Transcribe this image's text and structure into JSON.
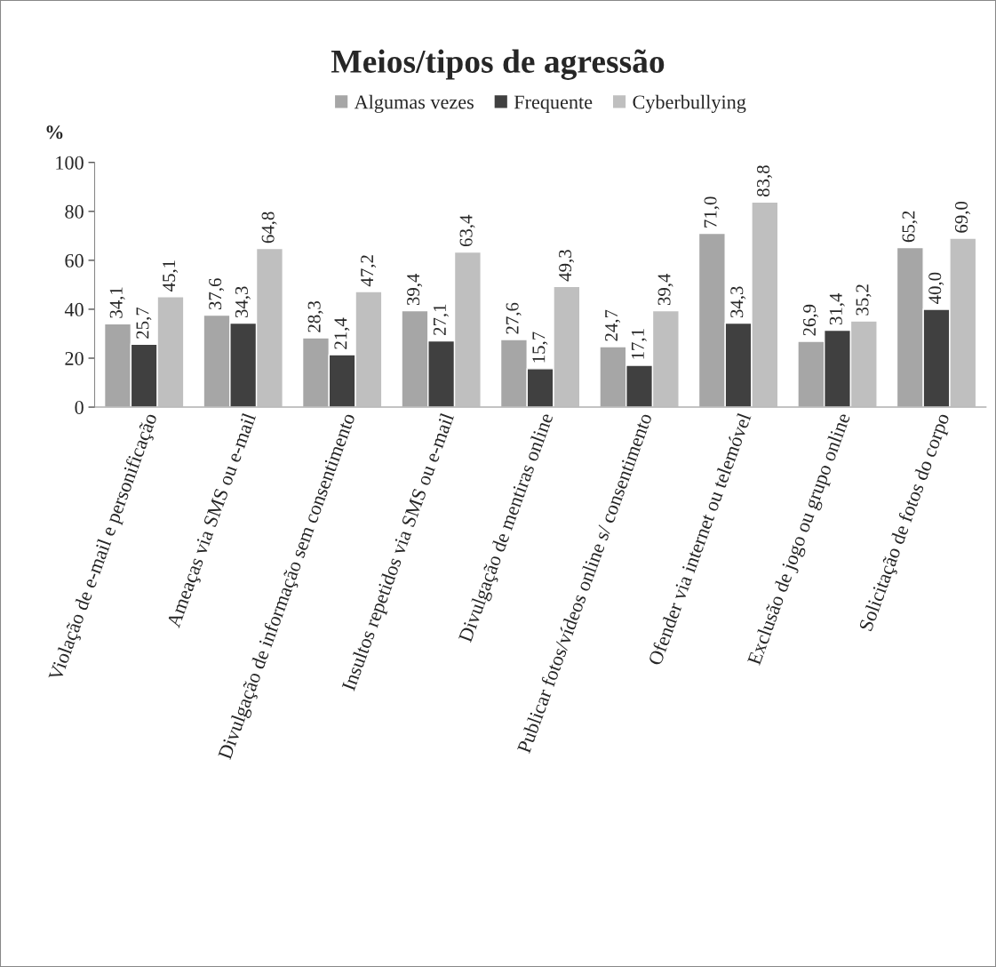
{
  "chart_data": {
    "type": "bar",
    "title": "Meios/tipos de agressão",
    "ylabel": "%",
    "categories": [
      "Violação de e-mail e personificação",
      "Ameaças via SMS ou e-mail",
      "Divulgação de informação sem consentimento",
      "Insultos repetidos via SMS ou e-mail",
      "Divulgação de mentiras online",
      "Publicar fotos/vídeos online s/ consentimento",
      "Ofender via internet ou telemóvel",
      "Exclusão de jogo ou grupo online",
      "Solicitação de fotos do corpo"
    ],
    "series": [
      {
        "name": "Algumas vezes",
        "color": "#a6a6a6",
        "values": [
          34.1,
          37.6,
          28.3,
          39.4,
          27.6,
          24.7,
          71.0,
          26.9,
          65.2
        ],
        "value_labels": [
          "34,1",
          "37,6",
          "28,3",
          "39,4",
          "27,6",
          "24,7",
          "71,0",
          "26,9",
          "65,2"
        ]
      },
      {
        "name": "Frequente",
        "color": "#404040",
        "values": [
          25.7,
          34.3,
          21.4,
          27.1,
          15.7,
          17.1,
          34.3,
          31.4,
          40.0
        ],
        "value_labels": [
          "25,7",
          "34,3",
          "21,4",
          "27,1",
          "15,7",
          "17,1",
          "34,3",
          "31,4",
          "40,0"
        ]
      },
      {
        "name": "Cyberbullying",
        "color": "#bfbfbf",
        "values": [
          45.1,
          64.8,
          47.2,
          63.4,
          49.3,
          39.4,
          83.8,
          35.2,
          69.0
        ],
        "value_labels": [
          "45,1",
          "64,8",
          "47,2",
          "63,4",
          "49,3",
          "39,4",
          "83,8",
          "35,2",
          "69,0"
        ]
      }
    ],
    "ylim": [
      0,
      100
    ],
    "yticks": [
      0,
      20,
      40,
      60,
      80,
      100
    ],
    "grid": false,
    "legend": "top"
  }
}
